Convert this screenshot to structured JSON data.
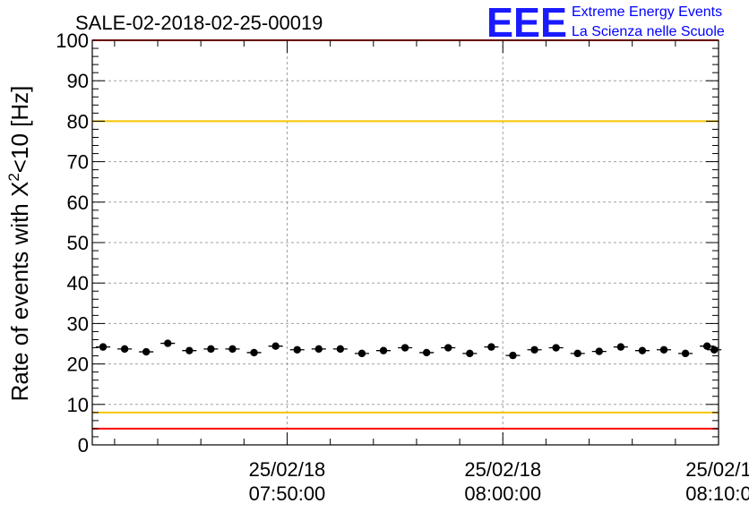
{
  "header": {
    "run_title": "SALE-02-2018-02-25-00019",
    "logo_letters": "EEE",
    "logo_line1": "Extreme Energy Events",
    "logo_line2": "La Scienza nelle Scuole"
  },
  "colors": {
    "red_limit": "#ff0000",
    "yellow_limit": "#f5c400",
    "grid": "#a0a0a0",
    "marker": "#000000",
    "logo": "#1a1aff"
  },
  "chart_data": {
    "type": "scatter",
    "title": "SALE-02-2018-02-25-00019",
    "ylabel_main": "Rate of events with X",
    "ylabel_sup": "2",
    "ylabel_tail": "<10 [Hz]",
    "xlabel": "",
    "ylim": [
      0,
      100
    ],
    "yticks": [
      0,
      10,
      20,
      30,
      40,
      50,
      60,
      70,
      80,
      90,
      100
    ],
    "xlim": [
      "2018-02-25 07:40:58",
      "2018-02-25 08:10:00"
    ],
    "xticks": [
      {
        "time": "2018-02-25 07:50:00",
        "date_label": "25/02/18",
        "time_label": "07:50:00"
      },
      {
        "time": "2018-02-25 08:00:00",
        "date_label": "25/02/18",
        "time_label": "08:00:00"
      },
      {
        "time": "2018-02-25 08:10:00",
        "date_label": "25/02/1",
        "time_label": "08:10:0"
      }
    ],
    "grid": true,
    "reference_lines": [
      {
        "y": 100,
        "color": "red"
      },
      {
        "y": 80,
        "color": "yellow"
      },
      {
        "y": 8,
        "color": "yellow"
      },
      {
        "y": 4,
        "color": "red"
      }
    ],
    "series": [
      {
        "x": [
          "2018-02-25 07:41:28",
          "2018-02-25 07:42:28",
          "2018-02-25 07:43:28",
          "2018-02-25 07:44:28",
          "2018-02-25 07:45:28",
          "2018-02-25 07:46:28",
          "2018-02-25 07:47:28",
          "2018-02-25 07:48:28",
          "2018-02-25 07:49:28",
          "2018-02-25 07:50:28",
          "2018-02-25 07:51:28",
          "2018-02-25 07:52:28",
          "2018-02-25 07:53:28",
          "2018-02-25 07:54:28",
          "2018-02-25 07:55:28",
          "2018-02-25 07:56:28",
          "2018-02-25 07:57:28",
          "2018-02-25 07:58:28",
          "2018-02-25 07:59:28",
          "2018-02-25 08:00:28",
          "2018-02-25 08:01:28",
          "2018-02-25 08:02:28",
          "2018-02-25 08:03:28",
          "2018-02-25 08:04:28",
          "2018-02-25 08:05:28",
          "2018-02-25 08:06:28",
          "2018-02-25 08:07:28",
          "2018-02-25 08:08:28",
          "2018-02-25 08:09:28",
          "2018-02-25 08:09:48"
        ],
        "values": [
          24.2,
          23.7,
          23.0,
          25.1,
          23.3,
          23.7,
          23.7,
          22.8,
          24.4,
          23.5,
          23.7,
          23.7,
          22.6,
          23.3,
          24.0,
          22.8,
          24.0,
          22.6,
          24.2,
          22.1,
          23.5,
          24.0,
          22.6,
          23.1,
          24.2,
          23.3,
          23.5,
          22.6,
          24.4,
          23.5
        ]
      }
    ]
  }
}
